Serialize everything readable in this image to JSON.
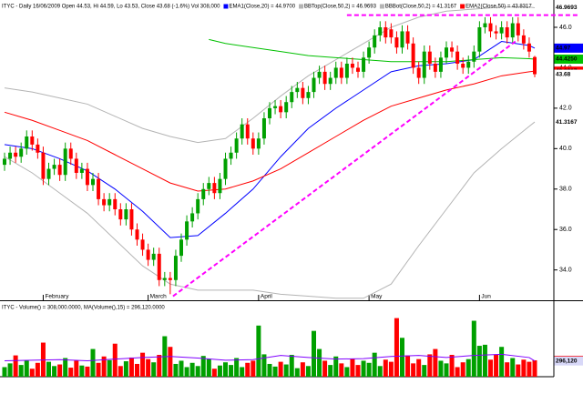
{
  "chart_data": {
    "type": "candlestick",
    "title": "ITYC - Daily 16/06/2009 Open 44.53, Hi 44.59, Lo 43.53, Close 43.68 (-1.6%) Vol 308,000",
    "categories": [
      null,
      null,
      null,
      null,
      null,
      null,
      null,
      "February",
      null,
      null,
      null,
      null,
      null,
      null,
      null,
      null,
      null,
      null,
      null,
      null,
      null,
      null,
      null,
      null,
      null,
      null,
      "March",
      null,
      null,
      null,
      null,
      null,
      null,
      null,
      null,
      null,
      null,
      null,
      null,
      null,
      null,
      null,
      null,
      null,
      null,
      null,
      "April",
      null,
      null,
      null,
      null,
      null,
      null,
      null,
      null,
      null,
      null,
      null,
      null,
      null,
      null,
      null,
      null,
      null,
      null,
      null,
      "May",
      null,
      null,
      null,
      null,
      null,
      null,
      null,
      null,
      null,
      null,
      null,
      null,
      null,
      null,
      null,
      null,
      null,
      null,
      null,
      "Jun",
      null,
      null,
      null,
      null,
      null,
      null,
      null,
      null,
      null,
      null
    ],
    "open": [
      39.2,
      39.5,
      39.8,
      39.6,
      40.0,
      40.6,
      40.2,
      39.8,
      38.5,
      39.0,
      39.2,
      38.7,
      40.0,
      39.5,
      38.8,
      39.0,
      38.2,
      38.5,
      37.5,
      37.2,
      37.5,
      37.0,
      36.5,
      37.0,
      36.0,
      35.5,
      35.0,
      34.5,
      34.8,
      33.5,
      33.6,
      33.5,
      34.7,
      35.5,
      36.4,
      36.8,
      37.5,
      38.0,
      38.3,
      37.8,
      38.5,
      39.5,
      39.8,
      40.5,
      41.2,
      40.5,
      40.0,
      40.5,
      41.5,
      42.0,
      42.1,
      41.8,
      42.3,
      42.8,
      43.0,
      42.5,
      42.8,
      43.5,
      43.8,
      43.2,
      43.5,
      44.0,
      43.5,
      44.2,
      44.0,
      43.8,
      44.5,
      45.0,
      45.6,
      46.0,
      45.9,
      45.5,
      45.0,
      45.8,
      45.2,
      44.0,
      43.5,
      44.8,
      44.2,
      43.8,
      44.5,
      45.0,
      44.8,
      44.2,
      44.0,
      44.3,
      44.8,
      46.0,
      46.2,
      45.8,
      45.7,
      46.0,
      45.5,
      46.2,
      45.6,
      45.2,
      44.53
    ],
    "high": [
      39.8,
      40.1,
      40.1,
      40.3,
      40.9,
      40.9,
      40.5,
      40.1,
      39.3,
      39.5,
      39.5,
      40.3,
      40.3,
      39.8,
      39.3,
      39.3,
      38.8,
      38.8,
      37.8,
      37.8,
      37.8,
      37.3,
      37.3,
      37.3,
      36.3,
      35.8,
      35.3,
      35.1,
      35.1,
      33.9,
      33.9,
      35.0,
      35.8,
      36.7,
      37.1,
      37.8,
      38.3,
      38.6,
      38.6,
      38.8,
      39.8,
      40.1,
      40.8,
      41.5,
      41.5,
      40.8,
      40.8,
      41.8,
      42.3,
      42.4,
      42.4,
      42.6,
      43.1,
      43.3,
      43.3,
      43.1,
      43.8,
      44.1,
      44.1,
      43.8,
      44.3,
      44.3,
      44.5,
      44.5,
      44.3,
      44.8,
      45.3,
      45.9,
      46.3,
      46.3,
      46.2,
      45.8,
      46.1,
      46.1,
      45.5,
      44.3,
      45.1,
      45.1,
      44.5,
      44.8,
      45.3,
      45.3,
      45.1,
      44.5,
      44.6,
      45.1,
      46.3,
      46.5,
      46.5,
      46.1,
      46.3,
      46.3,
      46.5,
      46.5,
      45.9,
      45.5,
      44.59
    ],
    "low": [
      38.9,
      39.2,
      39.3,
      39.3,
      39.7,
      39.9,
      39.5,
      38.2,
      38.2,
      38.7,
      38.4,
      38.4,
      39.2,
      38.5,
      38.5,
      37.9,
      37.9,
      37.2,
      36.9,
      36.9,
      36.7,
      36.2,
      36.2,
      35.7,
      35.2,
      34.7,
      34.2,
      34.2,
      33.2,
      33.2,
      32.8,
      33.2,
      34.4,
      35.2,
      36.1,
      36.5,
      37.2,
      37.7,
      37.5,
      37.5,
      38.2,
      39.2,
      39.5,
      40.2,
      40.2,
      39.7,
      39.7,
      40.2,
      41.2,
      41.7,
      41.5,
      41.5,
      42.0,
      42.5,
      42.2,
      42.2,
      42.5,
      43.2,
      42.9,
      42.9,
      43.2,
      43.2,
      43.2,
      43.7,
      43.5,
      43.5,
      44.2,
      44.7,
      45.3,
      45.2,
      45.2,
      44.7,
      44.7,
      44.9,
      43.7,
      43.2,
      43.2,
      43.9,
      43.5,
      43.5,
      44.2,
      44.5,
      43.9,
      43.7,
      43.7,
      44.0,
      44.5,
      45.7,
      45.5,
      45.4,
      45.4,
      45.2,
      45.2,
      45.3,
      44.9,
      44.5,
      43.53
    ],
    "close": [
      39.5,
      39.8,
      39.6,
      40.0,
      40.6,
      40.2,
      39.8,
      38.5,
      39.0,
      39.2,
      38.7,
      40.0,
      39.5,
      38.8,
      39.0,
      38.2,
      38.5,
      37.5,
      37.2,
      37.5,
      37.0,
      36.5,
      37.0,
      36.0,
      35.5,
      35.0,
      34.5,
      34.8,
      33.5,
      33.6,
      33.5,
      34.7,
      35.5,
      36.4,
      36.8,
      37.5,
      38.0,
      38.3,
      37.8,
      38.5,
      39.5,
      39.8,
      40.5,
      41.2,
      40.5,
      40.0,
      40.5,
      41.5,
      42.0,
      42.1,
      41.8,
      42.3,
      42.8,
      43.0,
      42.5,
      42.8,
      43.5,
      43.8,
      43.2,
      43.5,
      44.0,
      43.5,
      44.2,
      44.0,
      43.8,
      44.5,
      45.0,
      45.6,
      46.0,
      45.5,
      45.5,
      45.0,
      45.8,
      45.2,
      44.0,
      43.5,
      44.8,
      44.2,
      43.8,
      44.5,
      45.0,
      44.8,
      44.2,
      44.0,
      44.3,
      44.8,
      46.0,
      46.2,
      45.8,
      45.7,
      46.0,
      45.5,
      46.2,
      45.6,
      45.2,
      44.8,
      43.68
    ],
    "up_color": "#00a000",
    "down_color": "#ff0000",
    "ylim": [
      32.5,
      47.35
    ],
    "yticks": [
      {
        "value": 46,
        "label": "46.0"
      },
      {
        "value": 44,
        "label": "44.0"
      },
      {
        "value": 42,
        "label": "42.0"
      },
      {
        "value": 40,
        "label": "40.0"
      },
      {
        "value": 38,
        "label": "38.0"
      },
      {
        "value": 36,
        "label": "36.0"
      },
      {
        "value": 34,
        "label": "34.0"
      }
    ],
    "series": [
      {
        "name": "EMA1(Close,20) = 44.9700",
        "color": "#0000ff",
        "x": [
          0,
          5,
          10,
          15,
          20,
          25,
          30,
          35,
          40,
          45,
          50,
          55,
          60,
          65,
          70,
          75,
          80,
          85,
          90,
          95,
          96
        ],
        "values": [
          40.2,
          40.0,
          39.5,
          38.9,
          38.0,
          36.9,
          35.6,
          35.7,
          36.8,
          38.0,
          39.6,
          41.0,
          42.0,
          42.9,
          43.8,
          44.1,
          44.2,
          44.4,
          45.3,
          45.1,
          44.97
        ]
      },
      {
        "name": "BBTop(Close,50,2) = 46.9693",
        "color": "#b4b4b4",
        "x": [
          0,
          5,
          10,
          15,
          20,
          25,
          30,
          35,
          40,
          45,
          50,
          55,
          60,
          65,
          70,
          75,
          80,
          85,
          90,
          95,
          96
        ],
        "values": [
          43.0,
          42.8,
          42.5,
          42.2,
          41.6,
          41.0,
          40.6,
          40.3,
          40.5,
          41.5,
          42.6,
          43.6,
          44.4,
          45.2,
          46.0,
          46.5,
          46.8,
          46.9,
          47.0,
          47.0,
          46.9693
        ]
      },
      {
        "name": "BBBot(Close,50,2) = 41.3167",
        "color": "#b4b4b4",
        "x": [
          0,
          5,
          10,
          15,
          20,
          25,
          30,
          35,
          40,
          45,
          50,
          55,
          60,
          65,
          70,
          75,
          80,
          85,
          90,
          95,
          96
        ],
        "values": [
          39.6,
          38.8,
          37.8,
          36.8,
          35.5,
          34.2,
          33.3,
          33.0,
          33.0,
          33.0,
          32.8,
          32.7,
          32.6,
          32.6,
          33.3,
          35.2,
          37.0,
          38.8,
          40.0,
          41.1,
          41.3167
        ]
      },
      {
        "name": "EMA2(Close,50) = 43.8317",
        "color": "#ff0000",
        "x": [
          0,
          5,
          10,
          15,
          20,
          25,
          30,
          35,
          40,
          45,
          50,
          55,
          60,
          65,
          70,
          75,
          80,
          85,
          90,
          95,
          96
        ],
        "values": [
          41.8,
          41.4,
          40.9,
          40.4,
          39.7,
          39.0,
          38.3,
          37.9,
          38.0,
          38.4,
          39.0,
          39.8,
          40.6,
          41.4,
          42.1,
          42.5,
          42.9,
          43.2,
          43.6,
          43.8,
          43.8317
        ]
      },
      {
        "color": "#00c000",
        "x": [
          37,
          40,
          45,
          50,
          55,
          60,
          65,
          70,
          75,
          80,
          85,
          90,
          95,
          96
        ],
        "values": [
          45.4,
          45.2,
          45.0,
          44.8,
          44.6,
          44.5,
          44.4,
          44.3,
          44.3,
          44.3,
          44.4,
          44.5,
          44.45,
          44.425
        ]
      }
    ],
    "trendlines": [
      {
        "color": "#ff00ff",
        "x": [
          62,
          104
        ],
        "values": [
          46.6,
          46.6
        ]
      },
      {
        "color": "#ff00ff",
        "x": [
          30.5,
          92.5
        ],
        "values": [
          32.7,
          45.3
        ]
      }
    ],
    "price_tags": [
      46.9693,
      44.97,
      {
        "value": 44.425,
        "label": "44.4250"
      },
      43.8317,
      43.68,
      41.3167
    ],
    "price_tag_colors": [
      "#ffffff",
      "#0000ff",
      "#00c000",
      "#ff0000",
      "#ffffff",
      "#ffffff"
    ],
    "volume": {
      "title": "ITYC - Volume() = 308,000.0000, MA(Volume(),15) = 296,120.0000",
      "values": [
        180000,
        250000,
        400000,
        220000,
        300000,
        150000,
        260000,
        640000,
        280000,
        200000,
        230000,
        350000,
        170000,
        300000,
        210000,
        190000,
        520000,
        260000,
        380000,
        310000,
        620000,
        200000,
        290000,
        360000,
        240000,
        450000,
        330000,
        270000,
        410000,
        760000,
        560000,
        240000,
        300000,
        180000,
        260000,
        200000,
        390000,
        330000,
        150000,
        210000,
        270000,
        220000,
        350000,
        180000,
        260000,
        300000,
        960000,
        420000,
        240000,
        190000,
        280000,
        230000,
        410000,
        160000,
        270000,
        200000,
        860000,
        520000,
        300000,
        220000,
        380000,
        250000,
        180000,
        340000,
        220000,
        300000,
        260000,
        450000,
        200000,
        320000,
        280000,
        1100000,
        730000,
        400000,
        250000,
        330000,
        220000,
        420000,
        520000,
        300000,
        250000,
        410000,
        180000,
        270000,
        330000,
        1050000,
        580000,
        600000,
        320000,
        420000,
        560000,
        270000,
        350000,
        230000,
        320000,
        280000,
        308000
      ],
      "ylim": [
        0,
        1230000
      ],
      "ma": {
        "color": "#8000ff",
        "x": [
          0,
          5,
          10,
          15,
          20,
          25,
          30,
          35,
          40,
          45,
          50,
          55,
          60,
          65,
          70,
          75,
          80,
          85,
          90,
          95,
          96
        ],
        "values": [
          300000,
          310000,
          320000,
          300000,
          330000,
          360000,
          380000,
          350000,
          310000,
          320000,
          400000,
          360000,
          330000,
          340000,
          380000,
          400000,
          360000,
          400000,
          420000,
          360000,
          296120
        ]
      },
      "tags": [
        {
          "value": 308000,
          "label": "308,000"
        },
        {
          "value": 296120,
          "label": "296,120"
        }
      ],
      "tag_colors": [
        "#ff0000",
        "#d8d8f8"
      ]
    }
  }
}
